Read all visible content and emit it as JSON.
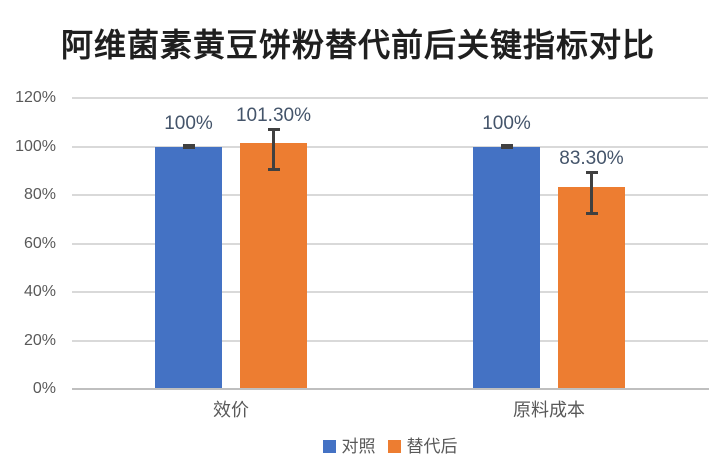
{
  "title": "阿维菌素黄豆饼粉替代前后关键指标对比",
  "colors": {
    "background": "#FFFFFF",
    "control_series": "#4472C4",
    "replacement_series": "#ED7D31",
    "gridline": "#D9D9D9",
    "axis_line": "#BFBFBF",
    "axis_text": "#595959",
    "data_label": "#44546A",
    "error_bar": "#404040",
    "title_text": "#1F1F1F"
  },
  "chart_data": {
    "type": "bar",
    "title": "阿维菌素黄豆饼粉替代前后关键指标对比",
    "categories": [
      "效价",
      "原料成本"
    ],
    "category_ids": [
      "potency",
      "raw-material-cost"
    ],
    "series": [
      {
        "id": "control",
        "name": "对照",
        "color": "#4472C4",
        "values": [
          100,
          100
        ],
        "labels": [
          "100%",
          "100%"
        ],
        "errors": [
          {
            "up": 0.5,
            "down": 0.5
          },
          {
            "up": 0.5,
            "down": 0.5
          }
        ]
      },
      {
        "id": "replacement",
        "name": "替代后",
        "color": "#ED7D31",
        "values": [
          101.3,
          83.3
        ],
        "labels": [
          "101.30%",
          "83.30%"
        ],
        "errors": [
          {
            "up": 6,
            "down": 11
          },
          {
            "up": 6,
            "down": 11
          }
        ]
      }
    ],
    "xlabel": "",
    "ylabel": "",
    "ylim": [
      0,
      120
    ],
    "yticks": [
      0,
      20,
      40,
      60,
      80,
      100,
      120
    ],
    "ytick_labels": [
      "0%",
      "20%",
      "40%",
      "60%",
      "80%",
      "100%",
      "120%"
    ],
    "grid": true,
    "error_bars": true,
    "legend_position": "bottom-center"
  },
  "legend": {
    "items": [
      {
        "id": "control",
        "label": "对照",
        "color": "#4472C4"
      },
      {
        "id": "replacement",
        "label": "替代后",
        "color": "#ED7D31"
      }
    ]
  }
}
